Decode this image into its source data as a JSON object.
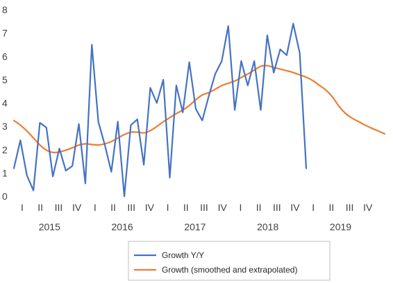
{
  "chart_data": {
    "type": "line",
    "title": "",
    "xlabel": "",
    "ylabel": "",
    "ylim": [
      0,
      8
    ],
    "y_ticks": [
      "0",
      "1",
      "2",
      "3",
      "4",
      "5",
      "6",
      "7",
      "8"
    ],
    "grid": false,
    "legend_position": "bottom-center",
    "quarter_labels": [
      "I",
      "II",
      "III",
      "IV",
      "I",
      "II",
      "III",
      "IV",
      "I",
      "II",
      "III",
      "IV",
      "I",
      "II",
      "III",
      "IV",
      "I",
      "II",
      "III",
      "IV"
    ],
    "years": [
      "2015",
      "2016",
      "2017",
      "2018",
      "2019"
    ],
    "series": [
      {
        "name": "Growth Y/Y",
        "color": "#4472C4",
        "values": [
          1.2,
          2.4,
          0.9,
          0.25,
          3.15,
          2.95,
          0.85,
          2.05,
          1.1,
          1.3,
          3.1,
          0.55,
          6.5,
          3.2,
          2.2,
          1.05,
          3.2,
          0.0,
          3.05,
          3.3,
          1.35,
          4.65,
          4.0,
          5.0,
          0.8,
          4.75,
          3.6,
          5.75,
          3.75,
          3.25,
          4.3,
          5.25,
          5.8,
          7.3,
          3.7,
          5.8,
          4.75,
          5.8,
          3.7,
          6.9,
          5.3,
          6.3,
          6.05,
          7.4,
          6.15,
          1.2
        ]
      },
      {
        "name": "Growth (smoothed and extrapolated)",
        "color": "#ED7D31",
        "values": [
          3.25,
          3.05,
          2.8,
          2.5,
          2.2,
          1.98,
          1.88,
          1.9,
          1.98,
          2.08,
          2.2,
          2.25,
          2.22,
          2.2,
          2.25,
          2.35,
          2.5,
          2.65,
          2.75,
          2.75,
          2.72,
          2.82,
          3.0,
          3.2,
          3.38,
          3.55,
          3.7,
          3.9,
          4.15,
          4.35,
          4.45,
          4.6,
          4.75,
          4.85,
          4.95,
          5.1,
          5.25,
          5.42,
          5.58,
          5.6,
          5.52,
          5.45,
          5.38,
          5.3,
          5.2,
          5.1,
          4.95,
          4.75,
          4.55,
          4.25,
          3.85,
          3.55,
          3.35,
          3.2,
          3.05,
          2.92,
          2.8,
          2.68
        ]
      }
    ]
  }
}
